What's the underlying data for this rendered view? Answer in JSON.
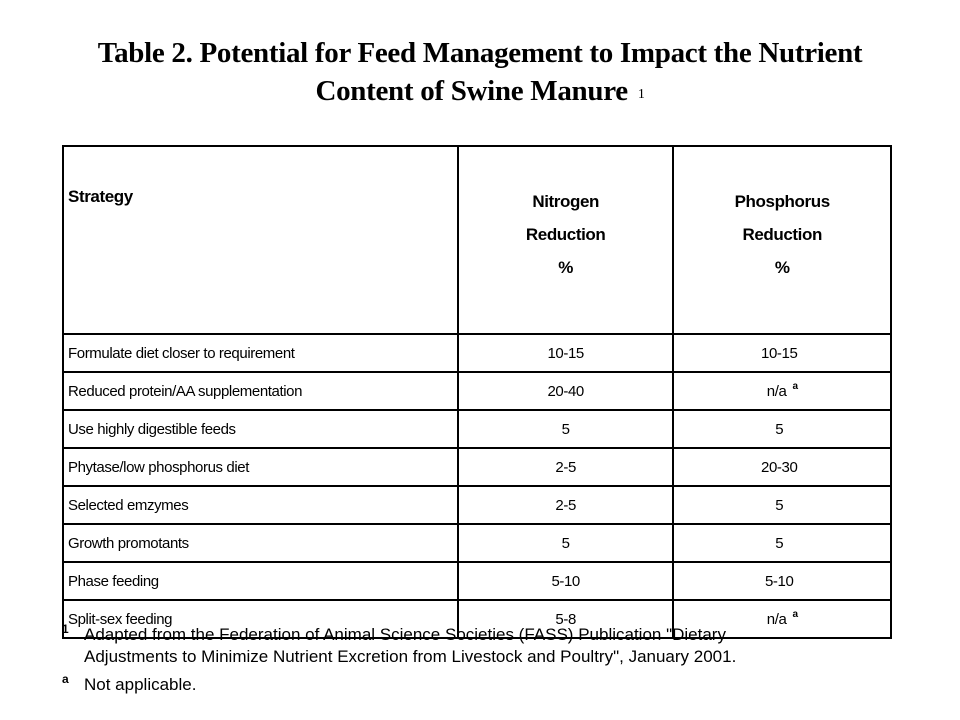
{
  "title": {
    "line1": "Table 2.  Potential for Feed Management to Impact the Nutrient",
    "line2": "Content of Swine Manure",
    "footnote_mark": "1"
  },
  "table": {
    "headers": {
      "strategy": "Strategy",
      "nitrogen": [
        "Nitrogen",
        "Reduction",
        "%"
      ],
      "phosphorus": [
        "Phosphorus",
        "Reduction",
        "%"
      ]
    },
    "rows": [
      {
        "strategy": "Formulate diet closer to requirement",
        "nitrogen": "10-15",
        "phosphorus": "10-15",
        "p_mark": ""
      },
      {
        "strategy": "Reduced protein/AA supplementation",
        "nitrogen": "20-40",
        "phosphorus": "n/a",
        "p_mark": "a"
      },
      {
        "strategy": "Use highly digestible feeds",
        "nitrogen": "5",
        "phosphorus": "5",
        "p_mark": ""
      },
      {
        "strategy": "Phytase/low phosphorus diet",
        "nitrogen": "2-5",
        "phosphorus": "20-30",
        "p_mark": ""
      },
      {
        "strategy": "Selected emzymes",
        "nitrogen": "2-5",
        "phosphorus": "5",
        "p_mark": ""
      },
      {
        "strategy": "Growth promotants",
        "nitrogen": "5",
        "phosphorus": "5",
        "p_mark": ""
      },
      {
        "strategy": "Phase feeding",
        "nitrogen": "5-10",
        "phosphorus": "5-10",
        "p_mark": ""
      },
      {
        "strategy": "Split-sex feeding",
        "nitrogen": "5-8",
        "phosphorus": "n/a",
        "p_mark": "a"
      }
    ]
  },
  "footnotes": [
    {
      "mark": "1",
      "lines": [
        "Adapted from the Federation of Animal Science Societies (FASS) Publication \"Dietary",
        "Adjustments to Minimize Nutrient Excretion from Livestock and Poultry\", January 2001."
      ]
    },
    {
      "mark": "a",
      "lines": [
        "Not applicable."
      ]
    }
  ]
}
